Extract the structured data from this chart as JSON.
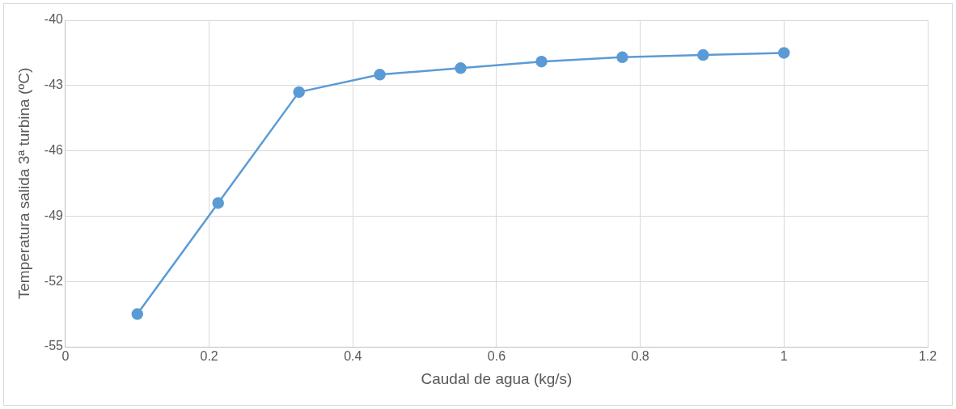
{
  "chart_data": {
    "type": "line",
    "xlabel": "Caudal de agua (kg/s)",
    "ylabel": "Temperatura salida 3ª turbina (ºC)",
    "x": [
      0.1,
      0.2125,
      0.325,
      0.4375,
      0.55,
      0.6625,
      0.775,
      0.8875,
      1
    ],
    "series": [
      {
        "color": "#5b9bd5",
        "values": [
          -53.5,
          -48.4,
          -43.3,
          -42.5,
          -42.2,
          -41.9,
          -41.7,
          -41.6,
          -41.5
        ]
      }
    ],
    "xlim": [
      0,
      1.2
    ],
    "xticks": [
      0,
      0.2,
      0.4,
      0.6,
      0.8,
      1,
      1.2
    ],
    "ylim": [
      -55,
      -40
    ],
    "yticks": [
      -55,
      -52,
      -49,
      -46,
      -43,
      -40
    ],
    "grid": true,
    "marker": "circle",
    "line_style": "solid"
  }
}
